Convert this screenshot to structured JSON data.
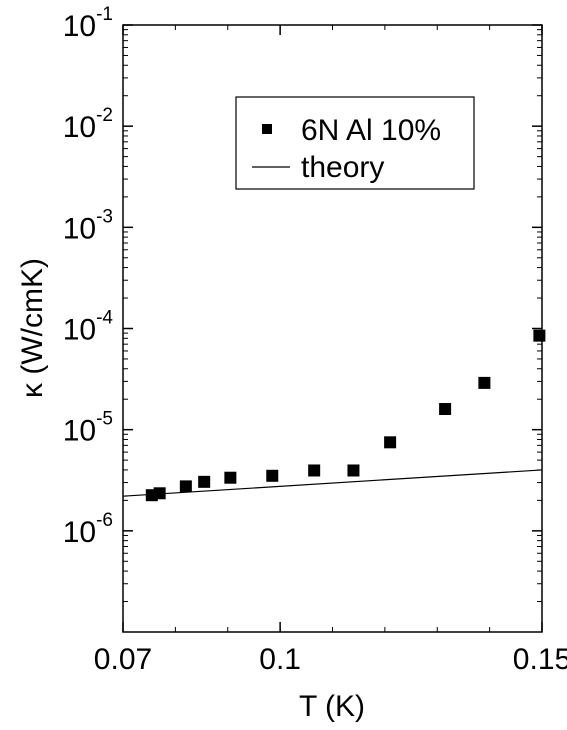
{
  "chart_data": {
    "type": "scatter",
    "xlabel": "T (K)",
    "ylabel": "κ (W/cmK)",
    "xlim": [
      0.07,
      0.15
    ],
    "ylim": [
      1e-07,
      0.1
    ],
    "yscale": "log",
    "grid": false,
    "legend_position": "top-right",
    "x_ticks": [
      "0.07",
      "0.1",
      "0.15"
    ],
    "x_tick_values": [
      0.07,
      0.1,
      0.15
    ],
    "y_ticks": [
      {
        "value": 1e-06,
        "base": "10",
        "exp": "-6"
      },
      {
        "value": 1e-05,
        "base": "10",
        "exp": "-5"
      },
      {
        "value": 0.0001,
        "base": "10",
        "exp": "-4"
      },
      {
        "value": 0.001,
        "base": "10",
        "exp": "-3"
      },
      {
        "value": 0.01,
        "base": "10",
        "exp": "-2"
      },
      {
        "value": 0.1,
        "base": "10",
        "exp": "-1"
      }
    ],
    "series": [
      {
        "name": "6N Al 10%",
        "type": "scatter",
        "marker": "square",
        "color": "#000000",
        "x": [
          0.0755,
          0.077,
          0.082,
          0.0855,
          0.0905,
          0.0985,
          0.1065,
          0.114,
          0.121,
          0.1315,
          0.139,
          0.1495
        ],
        "y": [
          2.25e-06,
          2.35e-06,
          2.75e-06,
          3.05e-06,
          3.35e-06,
          3.5e-06,
          3.95e-06,
          3.95e-06,
          7.5e-06,
          1.6e-05,
          2.9e-05,
          8.5e-05
        ]
      },
      {
        "name": "theory",
        "type": "line",
        "color": "#000000",
        "x": [
          0.07,
          0.15
        ],
        "y": [
          2.2e-06,
          4e-06
        ]
      }
    ]
  }
}
